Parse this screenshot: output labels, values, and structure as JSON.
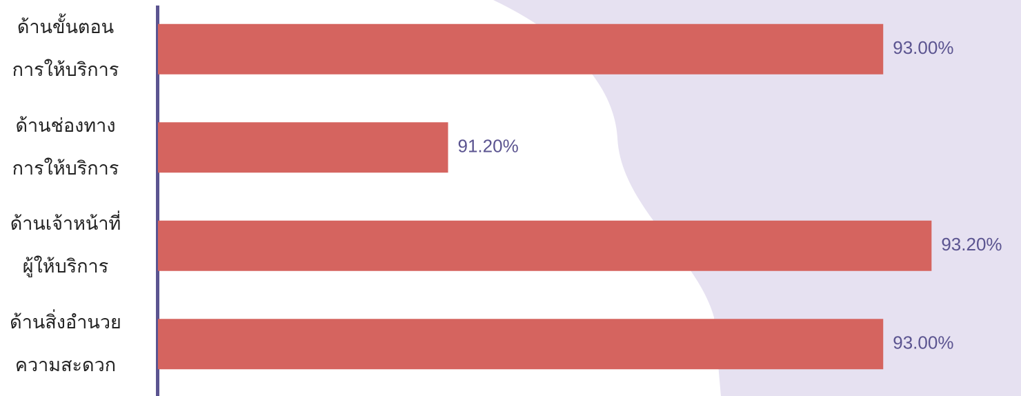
{
  "chart_data": {
    "type": "hbar",
    "categories": [
      "ด้านขั้นตอน\nการให้บริการ",
      "ด้านช่องทาง\nการให้บริการ",
      "ด้านเจ้าหน้าที่\nผู้ให้บริการ",
      "ด้านสิ่งอำนวย\nความสะดวก"
    ],
    "values": [
      93.0,
      91.2,
      93.2,
      93.0
    ],
    "value_labels": [
      "93.00%",
      "91.20%",
      "93.20%",
      "93.00%"
    ],
    "color": "#d5645f",
    "xlim": [
      90,
      93.57
    ]
  }
}
